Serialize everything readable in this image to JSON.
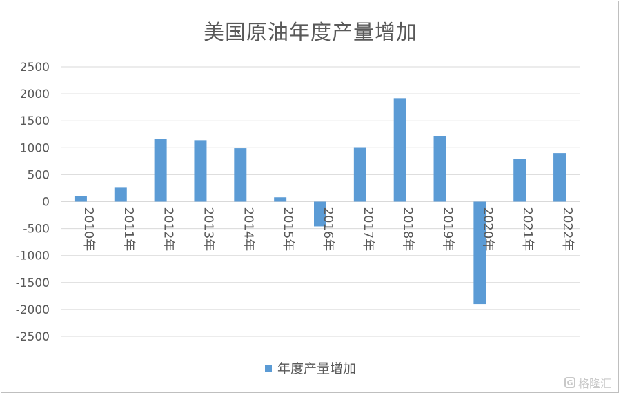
{
  "chart_data": {
    "type": "bar",
    "title": "美国原油年度产量增加",
    "categories": [
      "2010年",
      "2011年",
      "2012年",
      "2013年",
      "2014年",
      "2015年",
      "2016年",
      "2017年",
      "2018年",
      "2019年",
      "2020年",
      "2021年",
      "2022年"
    ],
    "series": [
      {
        "name": "年度产量增加",
        "values": [
          100,
          270,
          1160,
          1140,
          990,
          80,
          -460,
          1010,
          1920,
          1210,
          -1900,
          790,
          900
        ],
        "color": "#5b9bd5"
      }
    ],
    "ylim": [
      -2500,
      2500
    ],
    "yticks": [
      2500,
      2000,
      1500,
      1000,
      500,
      0,
      -500,
      -1000,
      -1500,
      -2000,
      -2500
    ],
    "grid": true,
    "legend_position": "bottom"
  },
  "watermark": {
    "icon": "gelonghui-logo-icon",
    "text": "格隆汇"
  }
}
